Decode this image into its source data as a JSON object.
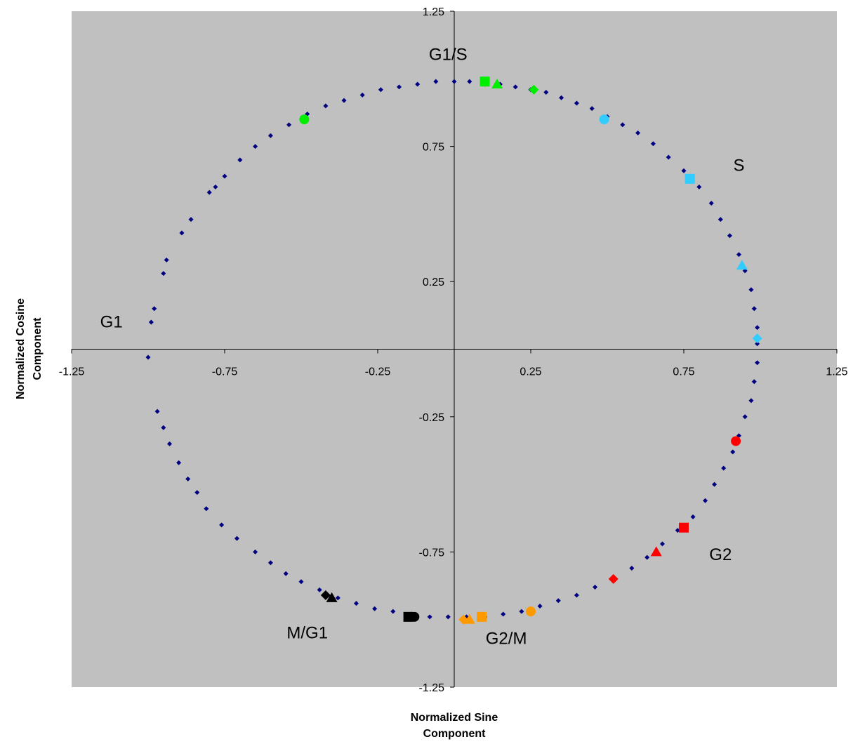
{
  "chart_data": {
    "type": "scatter",
    "title": "",
    "xlabel": [
      "Normalized Sine",
      "Component"
    ],
    "ylabel": [
      "Normalized Cosine",
      "Component"
    ],
    "xlim": [
      -1.25,
      1.25
    ],
    "ylim": [
      -1.25,
      1.25
    ],
    "x_ticks": [
      "-1.25",
      "-0.75",
      "-0.25",
      "0.25",
      "0.75",
      "1.25"
    ],
    "y_ticks": [
      "1.25",
      "0.75",
      "0.25",
      "-0.25",
      "-0.75",
      "-1.25"
    ],
    "grid": false,
    "legend": "none",
    "background": "#c0c0c0",
    "colors": {
      "main_series": "#000080",
      "G1/S": "#00ee00",
      "S": "#33ccff",
      "G2": "#ff0000",
      "G2/M": "#ff9900",
      "M/G1": "#000000"
    },
    "phase_labels": [
      {
        "text": "G1/S",
        "x": -0.02,
        "y": 1.07
      },
      {
        "text": "S",
        "x": 0.93,
        "y": 0.66
      },
      {
        "text": "G1",
        "x": -1.12,
        "y": 0.08
      },
      {
        "text": "G2",
        "x": 0.87,
        "y": -0.78
      },
      {
        "text": "M/G1",
        "x": -0.48,
        "y": -1.07
      },
      {
        "text": "G2/M",
        "x": 0.17,
        "y": -1.09
      }
    ],
    "series": [
      {
        "marker": "diamond",
        "color": "#000080",
        "points": [
          [
            0.0,
            0.99
          ],
          [
            0.05,
            0.99
          ],
          [
            0.1,
            0.98
          ],
          [
            0.15,
            0.98
          ],
          [
            0.2,
            0.97
          ],
          [
            0.25,
            0.96
          ],
          [
            0.3,
            0.95
          ],
          [
            0.35,
            0.93
          ],
          [
            0.4,
            0.91
          ],
          [
            0.45,
            0.89
          ],
          [
            0.5,
            0.86
          ],
          [
            0.55,
            0.83
          ],
          [
            0.6,
            0.8
          ],
          [
            0.65,
            0.76
          ],
          [
            0.7,
            0.71
          ],
          [
            0.75,
            0.66
          ],
          [
            0.8,
            0.6
          ],
          [
            0.84,
            0.54
          ],
          [
            0.87,
            0.48
          ],
          [
            0.9,
            0.42
          ],
          [
            0.93,
            0.35
          ],
          [
            0.95,
            0.29
          ],
          [
            0.97,
            0.22
          ],
          [
            0.98,
            0.15
          ],
          [
            0.99,
            0.08
          ],
          [
            0.99,
            0.02
          ],
          [
            0.99,
            -0.05
          ],
          [
            0.98,
            -0.12
          ],
          [
            0.97,
            -0.19
          ],
          [
            0.95,
            -0.25
          ],
          [
            0.93,
            -0.32
          ],
          [
            0.91,
            -0.38
          ],
          [
            0.88,
            -0.44
          ],
          [
            0.85,
            -0.5
          ],
          [
            0.82,
            -0.56
          ],
          [
            0.78,
            -0.62
          ],
          [
            0.73,
            -0.67
          ],
          [
            0.68,
            -0.72
          ],
          [
            0.63,
            -0.77
          ],
          [
            0.58,
            -0.81
          ],
          [
            0.52,
            -0.85
          ],
          [
            0.46,
            -0.88
          ],
          [
            0.4,
            -0.91
          ],
          [
            0.34,
            -0.93
          ],
          [
            0.28,
            -0.95
          ],
          [
            0.22,
            -0.97
          ],
          [
            0.16,
            -0.98
          ],
          [
            0.1,
            -0.99
          ],
          [
            0.04,
            -0.99
          ],
          [
            -0.02,
            -0.99
          ],
          [
            -0.08,
            -0.99
          ],
          [
            -0.14,
            -0.98
          ],
          [
            -0.2,
            -0.97
          ],
          [
            -0.26,
            -0.96
          ],
          [
            -0.32,
            -0.94
          ],
          [
            -0.38,
            -0.92
          ],
          [
            -0.44,
            -0.89
          ],
          [
            -0.5,
            -0.86
          ],
          [
            -0.55,
            -0.83
          ],
          [
            -0.6,
            -0.79
          ],
          [
            -0.65,
            -0.75
          ],
          [
            -0.71,
            -0.7
          ],
          [
            -0.76,
            -0.65
          ],
          [
            -0.81,
            -0.59
          ],
          [
            -0.84,
            -0.53
          ],
          [
            -0.87,
            -0.48
          ],
          [
            -0.9,
            -0.42
          ],
          [
            -0.93,
            -0.35
          ],
          [
            -0.95,
            -0.29
          ],
          [
            -0.97,
            -0.23
          ],
          [
            -1.0,
            -0.03
          ],
          [
            -0.99,
            0.1
          ],
          [
            -0.98,
            0.15
          ],
          [
            -0.95,
            0.28
          ],
          [
            -0.94,
            0.33
          ],
          [
            -0.89,
            0.43
          ],
          [
            -0.86,
            0.48
          ],
          [
            -0.8,
            0.58
          ],
          [
            -0.78,
            0.6
          ],
          [
            -0.75,
            0.64
          ],
          [
            -0.7,
            0.7
          ],
          [
            -0.65,
            0.75
          ],
          [
            -0.6,
            0.79
          ],
          [
            -0.54,
            0.83
          ],
          [
            -0.48,
            0.87
          ],
          [
            -0.42,
            0.9
          ],
          [
            -0.36,
            0.92
          ],
          [
            -0.3,
            0.94
          ],
          [
            -0.24,
            0.96
          ],
          [
            -0.18,
            0.97
          ],
          [
            -0.12,
            0.98
          ],
          [
            -0.06,
            0.99
          ]
        ]
      },
      {
        "name": "G1/S",
        "marker": "circle",
        "color": "#00ee00",
        "points": [
          [
            -0.49,
            0.85
          ]
        ]
      },
      {
        "name": "G1/S",
        "marker": "square",
        "color": "#00ee00",
        "points": [
          [
            0.1,
            0.99
          ]
        ]
      },
      {
        "name": "G1/S",
        "marker": "triangle",
        "color": "#00ee00",
        "points": [
          [
            0.14,
            0.98
          ]
        ]
      },
      {
        "name": "G1/S",
        "marker": "diamond-large",
        "color": "#00ee00",
        "points": [
          [
            0.26,
            0.96
          ]
        ]
      },
      {
        "name": "S",
        "marker": "circle",
        "color": "#33ccff",
        "points": [
          [
            0.49,
            0.85
          ]
        ]
      },
      {
        "name": "S",
        "marker": "square",
        "color": "#33ccff",
        "points": [
          [
            0.77,
            0.63
          ]
        ]
      },
      {
        "name": "S",
        "marker": "triangle",
        "color": "#33ccff",
        "points": [
          [
            0.94,
            0.31
          ]
        ]
      },
      {
        "name": "S",
        "marker": "diamond-large",
        "color": "#33ccff",
        "points": [
          [
            0.99,
            0.04
          ]
        ]
      },
      {
        "name": "G2",
        "marker": "circle",
        "color": "#ff0000",
        "points": [
          [
            0.92,
            -0.34
          ]
        ]
      },
      {
        "name": "G2",
        "marker": "square",
        "color": "#ff0000",
        "points": [
          [
            0.75,
            -0.66
          ]
        ]
      },
      {
        "name": "G2",
        "marker": "triangle",
        "color": "#ff0000",
        "points": [
          [
            0.66,
            -0.75
          ]
        ]
      },
      {
        "name": "G2",
        "marker": "diamond-large",
        "color": "#ff0000",
        "points": [
          [
            0.52,
            -0.85
          ]
        ]
      },
      {
        "name": "G2/M",
        "marker": "circle",
        "color": "#ff9900",
        "points": [
          [
            0.25,
            -0.97
          ]
        ]
      },
      {
        "name": "G2/M",
        "marker": "square",
        "color": "#ff9900",
        "points": [
          [
            0.09,
            -0.99
          ]
        ]
      },
      {
        "name": "G2/M",
        "marker": "triangle",
        "color": "#ff9900",
        "points": [
          [
            0.05,
            -1.0
          ]
        ]
      },
      {
        "name": "G2/M",
        "marker": "diamond-large",
        "color": "#ff9900",
        "points": [
          [
            0.03,
            -1.0
          ]
        ]
      },
      {
        "name": "M/G1",
        "marker": "circle",
        "color": "#000000",
        "points": [
          [
            -0.13,
            -0.99
          ]
        ]
      },
      {
        "name": "M/G1",
        "marker": "square",
        "color": "#000000",
        "points": [
          [
            -0.15,
            -0.99
          ]
        ]
      },
      {
        "name": "M/G1",
        "marker": "triangle",
        "color": "#000000",
        "points": [
          [
            -0.4,
            -0.92
          ]
        ]
      },
      {
        "name": "M/G1",
        "marker": "diamond-large",
        "color": "#000000",
        "points": [
          [
            -0.42,
            -0.91
          ]
        ]
      }
    ]
  }
}
